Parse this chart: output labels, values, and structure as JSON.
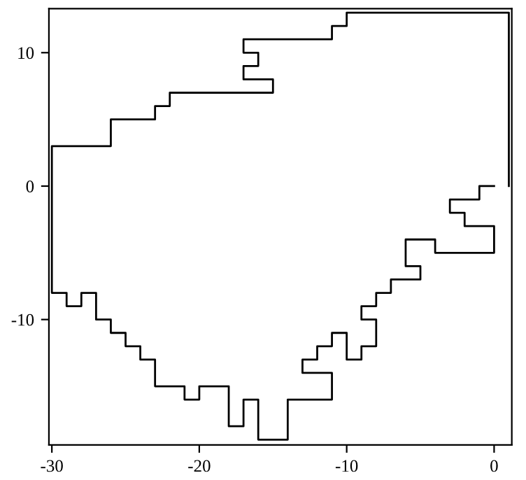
{
  "chart_data": {
    "type": "line",
    "series": [
      {
        "color": "#000000",
        "x": [
          0,
          -1,
          -1,
          -3,
          -3,
          -2,
          -2,
          0,
          0,
          -4,
          -4,
          -6,
          -6,
          -5,
          -5,
          -7,
          -7,
          -8,
          -8,
          -9,
          -9,
          -8,
          -8,
          -9,
          -9,
          -10,
          -10,
          -11,
          -11,
          -12,
          -12,
          -13,
          -13,
          -11,
          -11,
          -14,
          -14,
          -16,
          -16,
          -17,
          -17,
          -18,
          -18,
          -20,
          -20,
          -21,
          -21,
          -23,
          -23,
          -24,
          -24,
          -25,
          -25,
          -26,
          -26,
          -27,
          -27,
          -28,
          -28,
          -29,
          -29,
          -30,
          -30,
          -26,
          -26,
          -23,
          -23,
          -22,
          -22,
          -15,
          -15,
          -17,
          -17,
          -16,
          -16,
          -17,
          -17,
          -11,
          -11,
          -10,
          -10,
          1,
          1
        ],
        "values": [
          0,
          0,
          -1,
          -1,
          -2,
          -2,
          -3,
          -3,
          -5,
          -5,
          -4,
          -4,
          -6,
          -6,
          -7,
          -7,
          -8,
          -8,
          -9,
          -9,
          -10,
          -10,
          -12,
          -12,
          -13,
          -13,
          -11,
          -11,
          -12,
          -12,
          -13,
          -13,
          -14,
          -14,
          -16,
          -16,
          -19,
          -19,
          -16,
          -16,
          -18,
          -18,
          -15,
          -15,
          -16,
          -16,
          -15,
          -15,
          -13,
          -13,
          -12,
          -12,
          -11,
          -11,
          -10,
          -10,
          -8,
          -8,
          -9,
          -9,
          -8,
          -8,
          3,
          3,
          5,
          5,
          6,
          6,
          7,
          7,
          8,
          8,
          9,
          9,
          10,
          10,
          11,
          11,
          12,
          12,
          13,
          13,
          0
        ]
      }
    ],
    "xlim": [
      -30.2,
      1.2
    ],
    "ylim": [
      -19.4,
      13.3
    ],
    "xticks": [
      -30,
      -20,
      -10,
      0
    ],
    "yticks": [
      -10,
      0,
      10
    ],
    "grid": false,
    "marker": "none",
    "line_style": "solid"
  }
}
